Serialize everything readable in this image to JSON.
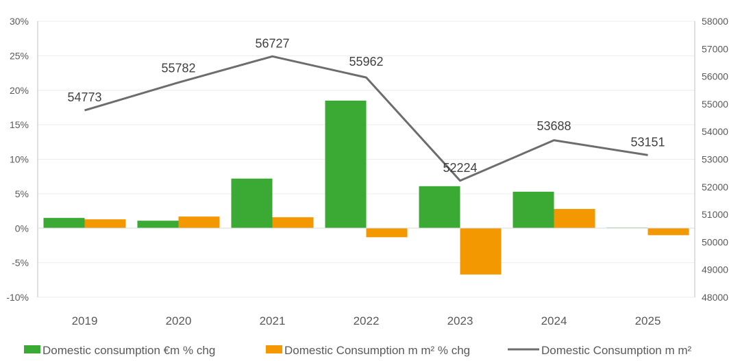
{
  "chart_data": {
    "type": "bar-line-combo",
    "categories": [
      "2019",
      "2020",
      "2021",
      "2022",
      "2023",
      "2024",
      "2025"
    ],
    "series": [
      {
        "name": "Domestic consumption €m % chg",
        "type": "bar",
        "axis": "left",
        "color": "#3aaa35",
        "values": [
          1.5,
          1.1,
          7.2,
          18.5,
          6.1,
          5.3,
          0.1
        ]
      },
      {
        "name": "Domestic Consumption m m² % chg",
        "type": "bar",
        "axis": "left",
        "color": "#f39800",
        "values": [
          1.3,
          1.7,
          1.6,
          -1.3,
          -6.7,
          2.8,
          -1.0
        ]
      },
      {
        "name": "Domestic Consumption m m²",
        "type": "line",
        "axis": "right",
        "color": "#6d6d6d",
        "values": [
          54773,
          55782,
          56727,
          55962,
          52224,
          53688,
          53151
        ],
        "labels": [
          "54773",
          "55782",
          "56727",
          "55962",
          "52224",
          "53688",
          "53151"
        ]
      }
    ],
    "left_axis": {
      "range": [
        -10,
        30
      ],
      "ticks": [
        30,
        25,
        20,
        15,
        10,
        5,
        0,
        -5,
        -10
      ],
      "tick_labels": [
        "30%",
        "25%",
        "20%",
        "15%",
        "10%",
        "5%",
        "0%",
        "-5%",
        "-10%"
      ]
    },
    "right_axis": {
      "range": [
        48000,
        58000
      ],
      "ticks": [
        58000,
        57000,
        56000,
        55000,
        54000,
        53000,
        52000,
        51000,
        50000,
        49000,
        48000
      ],
      "tick_labels": [
        "58000",
        "57000",
        "56000",
        "55000",
        "54000",
        "53000",
        "52000",
        "51000",
        "50000",
        "49000",
        "48000"
      ]
    },
    "legend_position": "bottom",
    "grid": true
  }
}
